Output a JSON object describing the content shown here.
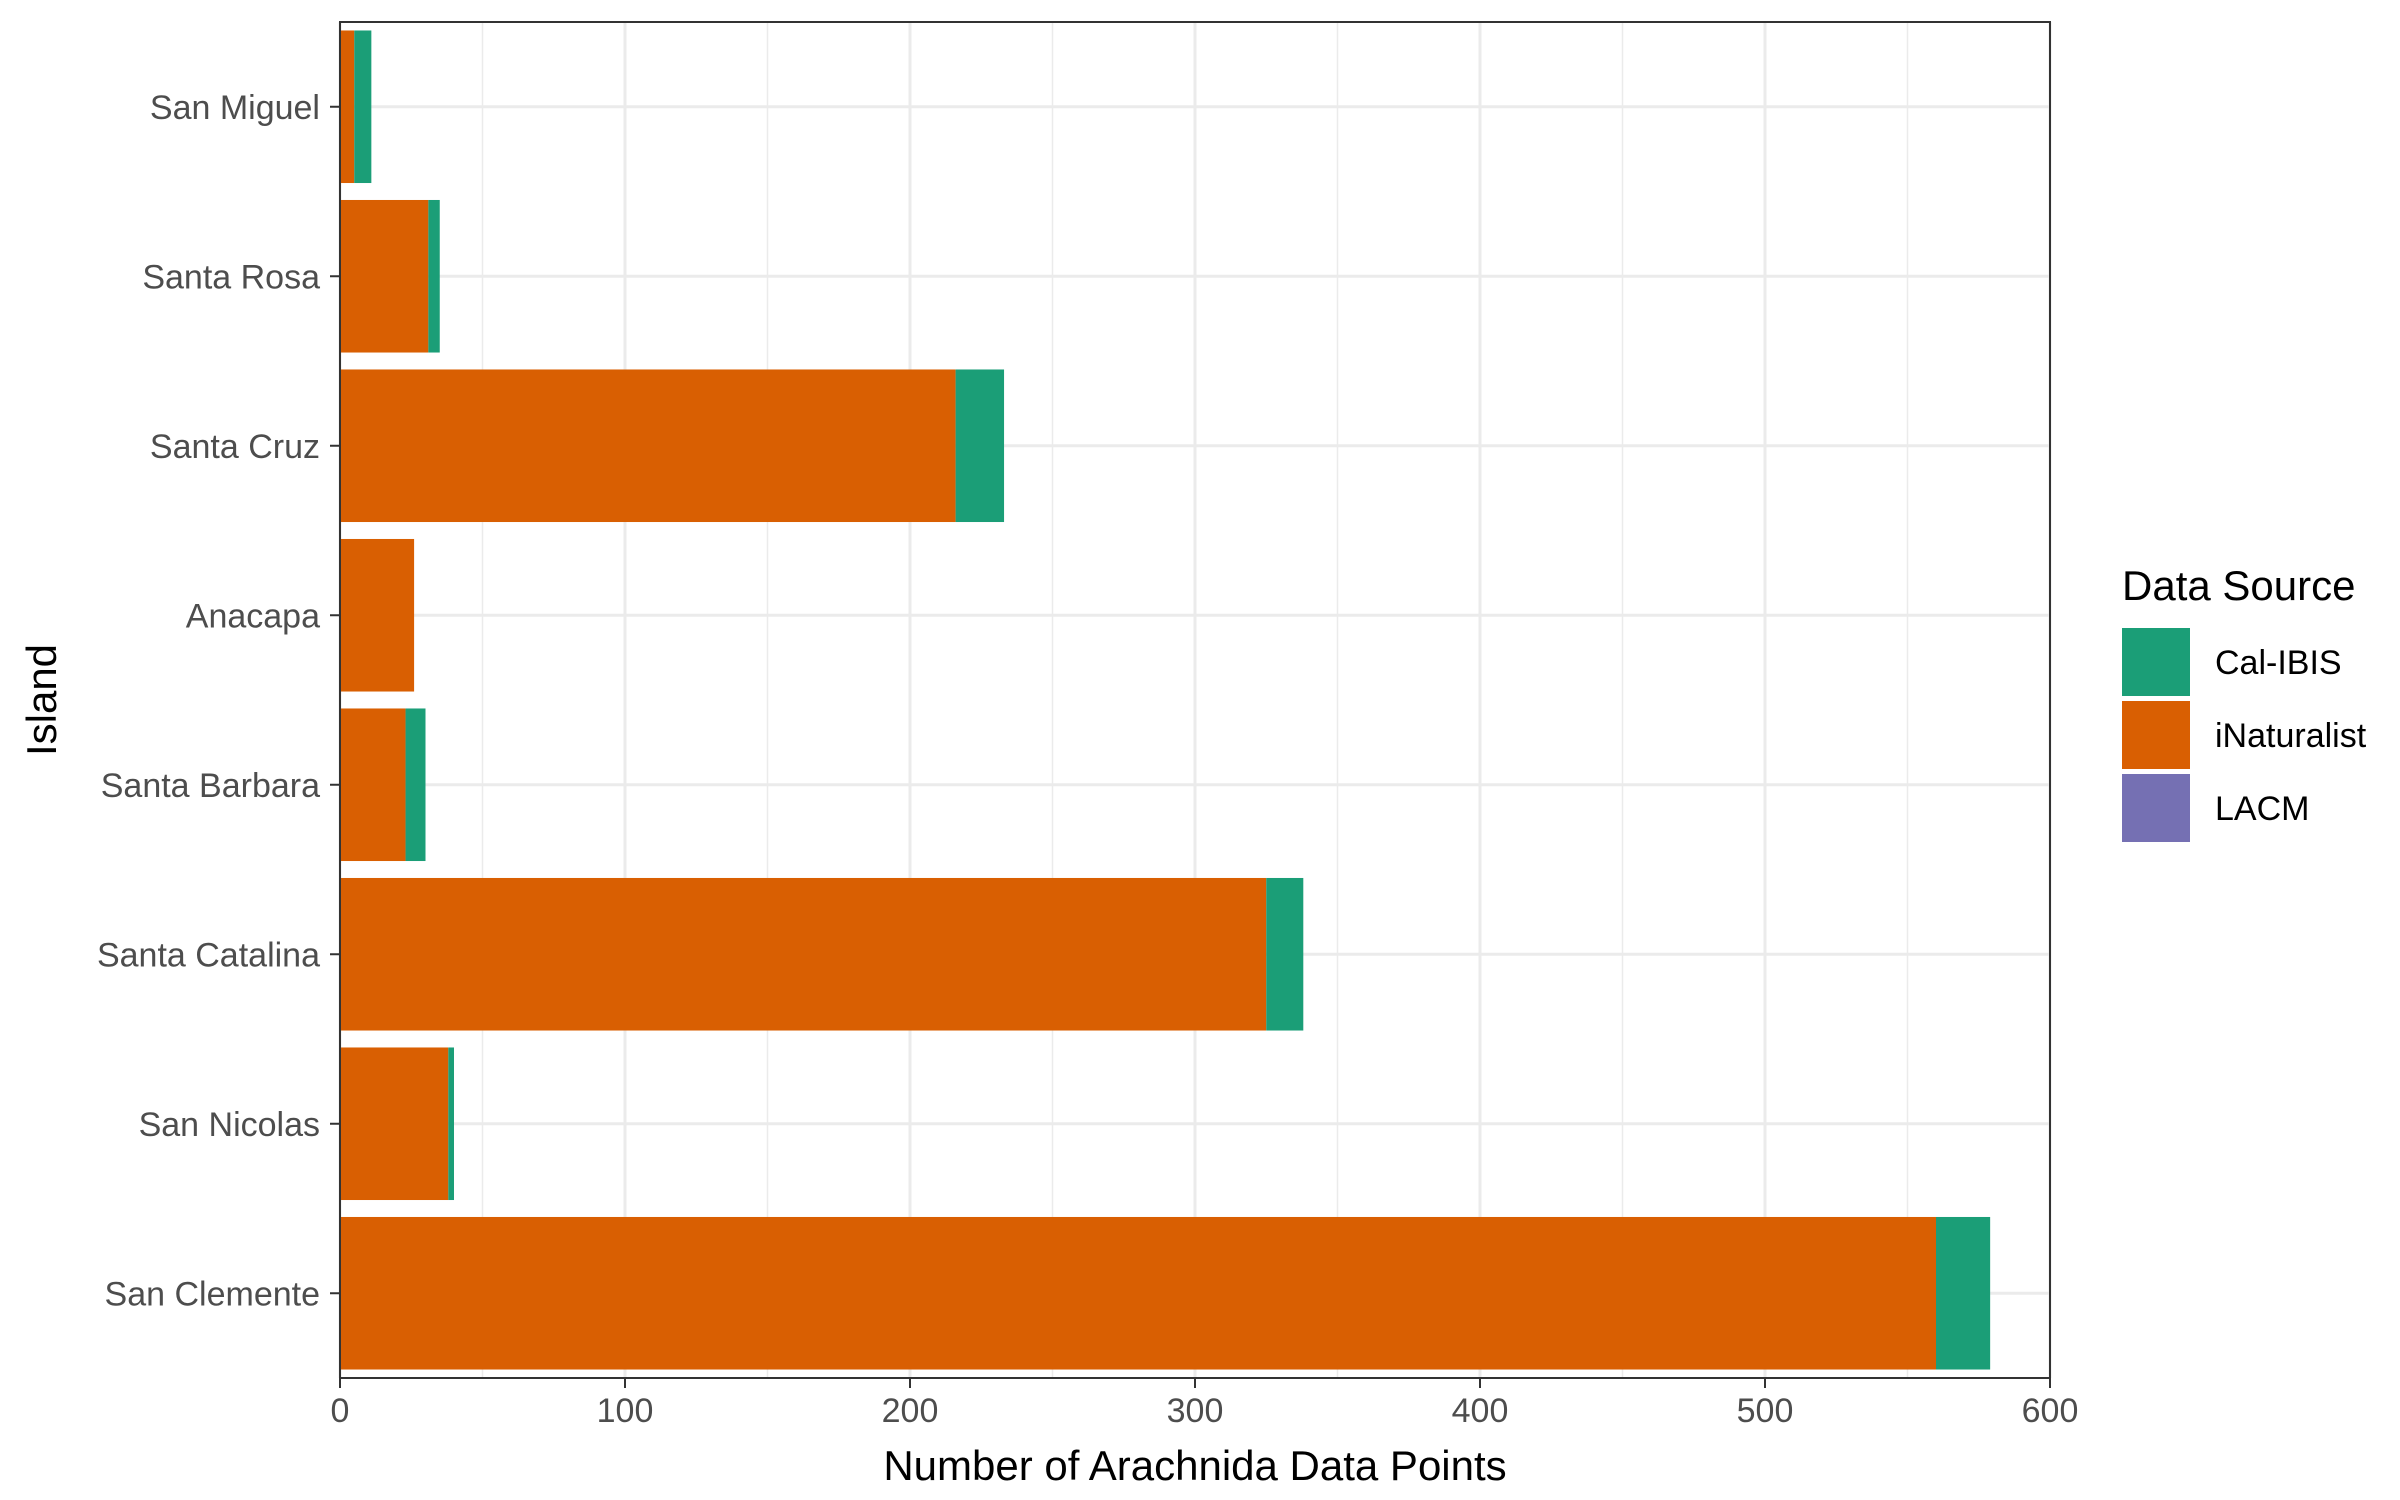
{
  "chart_data": {
    "type": "bar",
    "orientation": "horizontal",
    "stacked": true,
    "title": "",
    "xlabel": "Number of Arachnida Data Points",
    "ylabel": "Island",
    "xlim": [
      0,
      600
    ],
    "x_ticks": [
      0,
      100,
      200,
      300,
      400,
      500,
      600
    ],
    "grid": true,
    "legend_position": "right",
    "legend_title": "Data Source",
    "categories": [
      "San Miguel",
      "Santa Rosa",
      "Santa Cruz",
      "Anacapa",
      "Santa Barbara",
      "Santa Catalina",
      "San Nicolas",
      "San Clemente"
    ],
    "series": [
      {
        "name": "iNaturalist",
        "color": "#d95f02",
        "values": [
          5,
          31,
          216,
          26,
          23,
          325,
          38,
          560
        ]
      },
      {
        "name": "Cal-IBIS",
        "color": "#1b9e77",
        "values": [
          6,
          4,
          17,
          0,
          7,
          13,
          2,
          19
        ]
      },
      {
        "name": "LACM",
        "color": "#7570b3",
        "values": [
          0,
          0,
          0,
          0,
          0,
          0,
          0,
          0
        ]
      }
    ],
    "legend_order": [
      "Cal-IBIS",
      "iNaturalist",
      "LACM"
    ]
  }
}
